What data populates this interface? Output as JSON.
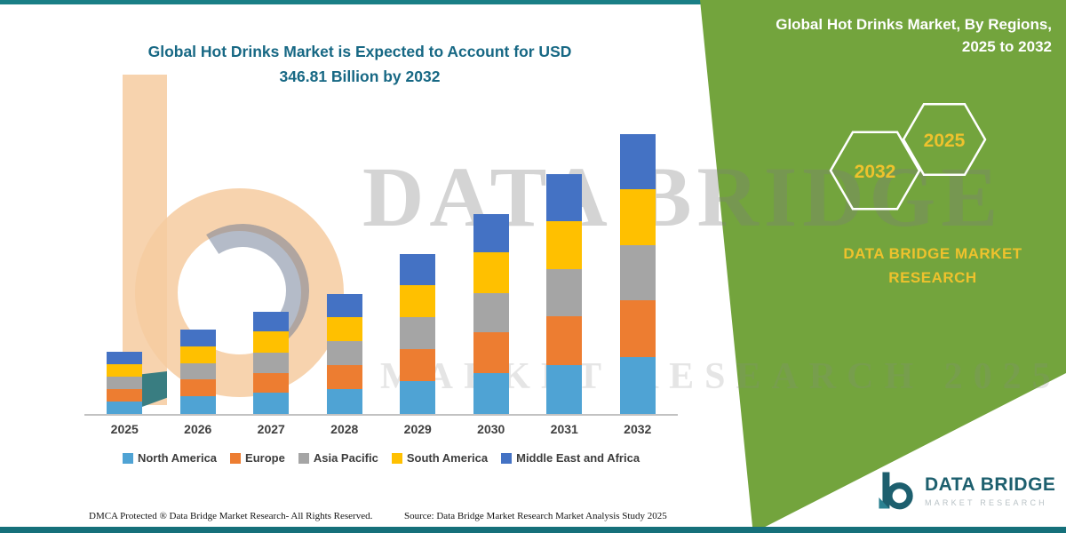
{
  "header": {
    "title_line1": "Global Hot Drinks Market is Expected to Account for USD",
    "title_line2": "346.81 Billion by 2032"
  },
  "side_panel": {
    "title_line1": "Global Hot Drinks Market, By Regions,",
    "title_line2": "2025 to 2032",
    "hexagon_back_label": "2032",
    "hexagon_front_label": "2025",
    "brand_line1": "DATA BRIDGE MARKET",
    "brand_line2": "RESEARCH",
    "panel_color": "#73a43d",
    "accent_yellow": "#eec22d"
  },
  "watermark": {
    "line1": "DATA BRIDGE",
    "line2": "MARKET RESEARCH 2025"
  },
  "chart_data": {
    "type": "bar",
    "stacked": true,
    "unit": "USD Billion",
    "title": "Global Hot Drinks Market is Expected to Account for USD 346.81 Billion by 2032",
    "categories": [
      "2025",
      "2026",
      "2027",
      "2028",
      "2029",
      "2030",
      "2031",
      "2032"
    ],
    "series": [
      {
        "name": "North America",
        "color": "#4fa3d4",
        "values": [
          16,
          22,
          26,
          31,
          41,
          51,
          61,
          71
        ]
      },
      {
        "name": "Europe",
        "color": "#ed7d31",
        "values": [
          15,
          21,
          25,
          30,
          40,
          50,
          60,
          70
        ]
      },
      {
        "name": "Asia Pacific",
        "color": "#a5a5a5",
        "values": [
          15,
          20,
          25,
          29,
          39,
          49,
          58,
          68
        ]
      },
      {
        "name": "South America",
        "color": "#ffc000",
        "values": [
          16,
          21,
          26,
          30,
          40,
          50,
          60,
          70
        ]
      },
      {
        "name": "Middle East and Africa",
        "color": "#4472c4",
        "values": [
          15,
          21,
          25,
          29,
          38,
          48,
          58,
          67.81
        ]
      }
    ],
    "totals": [
      77,
      105,
      127,
      149,
      198,
      248,
      297,
      346.81
    ],
    "ylim": [
      0,
      380
    ],
    "grid": false,
    "y_axis": "hidden",
    "legend_position": "bottom",
    "xlabel": "",
    "ylabel": ""
  },
  "footer": {
    "dmca": "DMCA Protected ® Data Bridge Market Research-  All Rights Reserved.",
    "source": "Source: Data Bridge Market Research  Market Analysis Study 2025"
  },
  "logo": {
    "name": "DATA BRIDGE",
    "subtitle": "MARKET RESEARCH"
  },
  "theme": {
    "accent_teal": "#1a7f86",
    "title_color": "#176884"
  }
}
